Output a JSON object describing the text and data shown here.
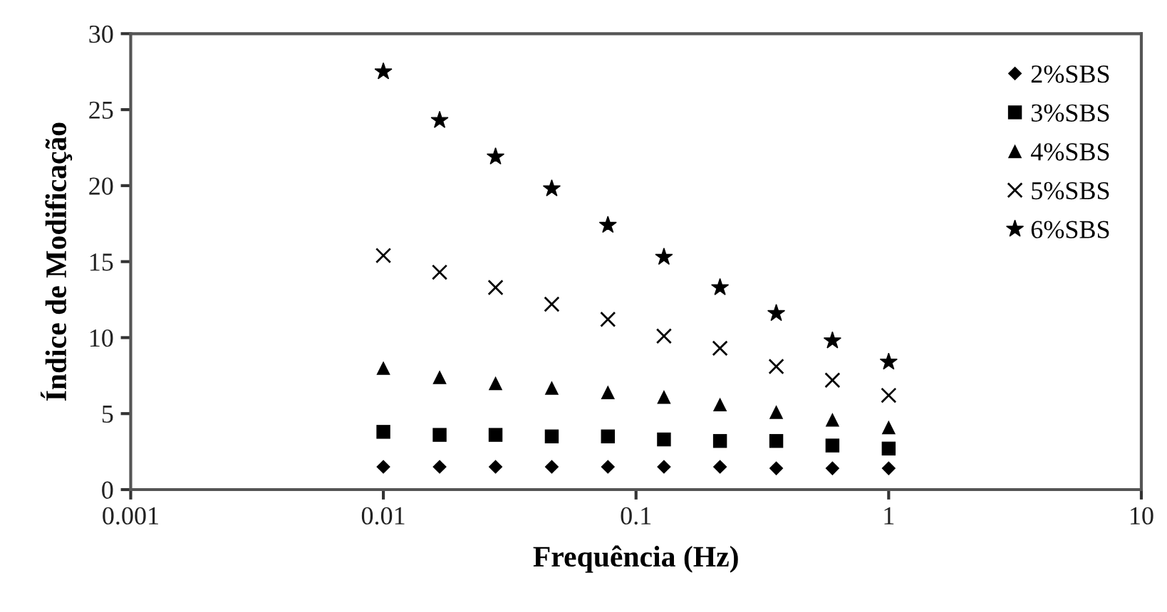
{
  "chart_data": {
    "type": "scatter",
    "xlabel": "Frequência (Hz)",
    "ylabel": "Índice de Modificação",
    "log": "x",
    "xlim": [
      0.001,
      10
    ],
    "xticks": [
      0.001,
      0.01,
      0.1,
      1,
      10
    ],
    "ylim": [
      0,
      30
    ],
    "yticks": [
      0,
      5,
      10,
      15,
      20,
      25,
      30
    ],
    "x": [
      0.01,
      0.0167,
      0.0278,
      0.0464,
      0.0774,
      0.129,
      0.215,
      0.359,
      0.599,
      1
    ],
    "grid": false,
    "legend": "top right",
    "series": [
      {
        "name": "2%SBS",
        "color": "#000000",
        "marker": "diamond",
        "values": [
          1.5,
          1.5,
          1.5,
          1.5,
          1.5,
          1.5,
          1.5,
          1.4,
          1.4,
          1.4
        ]
      },
      {
        "name": "3%SBS",
        "color": "#000000",
        "marker": "square",
        "values": [
          3.8,
          3.6,
          3.6,
          3.5,
          3.5,
          3.3,
          3.2,
          3.2,
          2.9,
          2.7
        ]
      },
      {
        "name": "4%SBS",
        "color": "#000000",
        "marker": "triangle",
        "values": [
          8.0,
          7.4,
          7.0,
          6.7,
          6.4,
          6.1,
          5.6,
          5.1,
          4.6,
          4.1
        ]
      },
      {
        "name": "5%SBS",
        "color": "#000000",
        "marker": "cross",
        "values": [
          15.4,
          14.3,
          13.3,
          12.2,
          11.2,
          10.1,
          9.3,
          8.1,
          7.2,
          6.2
        ]
      },
      {
        "name": "6%SBS",
        "color": "#000000",
        "marker": "star",
        "values": [
          27.5,
          24.3,
          21.9,
          19.8,
          17.4,
          15.3,
          13.3,
          11.6,
          9.8,
          8.4
        ]
      }
    ]
  }
}
